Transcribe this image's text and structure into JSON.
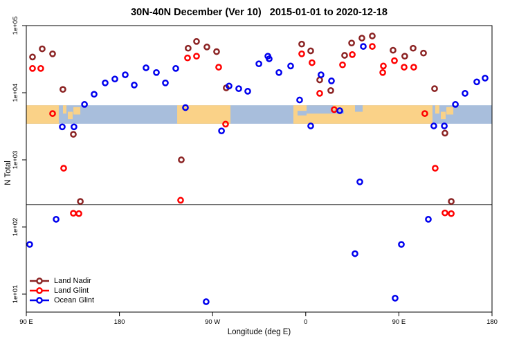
{
  "chart_data": {
    "type": "scatter",
    "title": "30N-40N December (Ver 10)   2015-01-01 to 2020-12-18",
    "xlabel": "Longitude (deg E)",
    "ylabel": "N Total",
    "x_axis": {
      "unit": "degrees east of 90E, wrapping 450 deg total",
      "range": [
        0,
        450
      ],
      "ticks": [
        {
          "pos": 0,
          "label": "90 E"
        },
        {
          "pos": 90,
          "label": "180"
        },
        {
          "pos": 180,
          "label": "90 W"
        },
        {
          "pos": 270,
          "label": "0"
        },
        {
          "pos": 360,
          "label": "90 E"
        },
        {
          "pos": 450,
          "label": "180"
        }
      ],
      "grid": false
    },
    "y_axis": {
      "scale": "log",
      "top_value": 100000,
      "bottom_value": 5.4,
      "ticks": [
        {
          "value": 100000,
          "label": "1e+05"
        },
        {
          "value": 10000,
          "label": "1e+04"
        },
        {
          "value": 1000,
          "label": "1e+03"
        },
        {
          "value": 100,
          "label": "1e+02"
        },
        {
          "value": 10,
          "label": "1e+01"
        }
      ],
      "grid": false
    },
    "reference_line_N": 215,
    "map_strip": {
      "description": "world land/ocean strip for 30N-40N drawn across plot",
      "N_top": 6500,
      "N_bottom": 3450,
      "ocean_color": "#A8BEDC",
      "land_color": "#FAD288",
      "segments": [
        {
          "type": "land",
          "d0": 0,
          "d1": 31.4,
          "f0": 0,
          "f1": 1,
          "name": "east-asia-left"
        },
        {
          "type": "land",
          "d0": 35.4,
          "d1": 38.8,
          "f0": 0,
          "f1": 0.45,
          "name": "korea-left"
        },
        {
          "type": "land",
          "d0": 40.1,
          "d1": 44.8,
          "f0": 0.35,
          "f1": 0.75,
          "name": "kyushu-left"
        },
        {
          "type": "land",
          "d0": 45.5,
          "d1": 52.2,
          "f0": 0.1,
          "f1": 0.5,
          "name": "honshu-left"
        },
        {
          "type": "land",
          "d0": 145.8,
          "d1": 197.3,
          "f0": 0,
          "f1": 1,
          "name": "north-america"
        },
        {
          "type": "land",
          "d0": 258.1,
          "d1": 392.5,
          "f0": 0,
          "f1": 1,
          "name": "africa-eurasia"
        },
        {
          "type": "ocean",
          "d0": 262.1,
          "d1": 270.8,
          "f0": 0.3,
          "f1": 0.55,
          "name": "west-mediterranean"
        },
        {
          "type": "ocean",
          "d0": 270.8,
          "d1": 306.9,
          "f0": 0,
          "f1": 0.45,
          "name": "mediterranean"
        },
        {
          "type": "ocean",
          "d0": 317.6,
          "d1": 325.0,
          "f0": 0,
          "f1": 0.35,
          "name": "caspian"
        },
        {
          "type": "land2",
          "d0": 296.2,
          "d1": 306.9,
          "f0": 0,
          "f1": 0.28,
          "name": "turkey"
        },
        {
          "type": "land",
          "d0": 395.1,
          "d1": 399.1,
          "f0": 0,
          "f1": 0.45,
          "name": "korea-right"
        },
        {
          "type": "land",
          "d0": 400.5,
          "d1": 405.2,
          "f0": 0.35,
          "f1": 0.75,
          "name": "kyushu-right"
        },
        {
          "type": "land",
          "d0": 405.9,
          "d1": 412.6,
          "f0": 0.1,
          "f1": 0.5,
          "name": "honshu-right"
        }
      ]
    },
    "legend_position": "bottom-left",
    "series": [
      {
        "name": "Land Nadir",
        "color": "#8B2323",
        "points": [
          [
            6.0,
            34000
          ],
          [
            15.4,
            45000
          ],
          [
            25.4,
            38000
          ],
          [
            35.4,
            11200
          ],
          [
            45.5,
            2400
          ],
          [
            52.2,
            240
          ],
          [
            149.8,
            1000
          ],
          [
            156.4,
            46000
          ],
          [
            164.5,
            58000
          ],
          [
            174.5,
            48000
          ],
          [
            183.9,
            41000
          ],
          [
            193.2,
            11800
          ],
          [
            266.1,
            53000
          ],
          [
            274.8,
            42000
          ],
          [
            283.5,
            15500
          ],
          [
            294.2,
            10800
          ],
          [
            307.6,
            36000
          ],
          [
            314.3,
            55000
          ],
          [
            324.3,
            65000
          ],
          [
            334.3,
            70000
          ],
          [
            354.4,
            43000
          ],
          [
            365.7,
            35000
          ],
          [
            373.8,
            46000
          ],
          [
            383.8,
            39000
          ],
          [
            394.5,
            11500
          ],
          [
            404.5,
            2500
          ],
          [
            410.6,
            240
          ]
        ]
      },
      {
        "name": "Land Glint",
        "color": "#FF0000",
        "points": [
          [
            6.0,
            23000
          ],
          [
            14.0,
            23000
          ],
          [
            25.4,
            4900
          ],
          [
            36.1,
            750
          ],
          [
            45.5,
            160
          ],
          [
            50.8,
            158
          ],
          [
            149.1,
            250
          ],
          [
            155.8,
            33000
          ],
          [
            164.5,
            35000
          ],
          [
            185.9,
            24000
          ],
          [
            192.6,
            3400
          ],
          [
            266.1,
            38000
          ],
          [
            276.1,
            28000
          ],
          [
            283.5,
            9800
          ],
          [
            297.5,
            5600
          ],
          [
            305.6,
            26000
          ],
          [
            315.0,
            37000
          ],
          [
            334.3,
            49000
          ],
          [
            344.4,
            20000
          ],
          [
            345.0,
            25000
          ],
          [
            355.7,
            30000
          ],
          [
            365.1,
            24000
          ],
          [
            374.4,
            24000
          ],
          [
            385.1,
            4900
          ],
          [
            395.1,
            750
          ],
          [
            404.5,
            162
          ],
          [
            410.6,
            158
          ]
        ]
      },
      {
        "name": "Ocean Glint",
        "color": "#0000EE",
        "points": [
          [
            3.3,
            55
          ],
          [
            28.8,
            130
          ],
          [
            34.8,
            3100
          ],
          [
            46.1,
            3100
          ],
          [
            56.2,
            6700
          ],
          [
            65.5,
            9500
          ],
          [
            76.2,
            14000
          ],
          [
            85.6,
            16000
          ],
          [
            95.6,
            18500
          ],
          [
            104.3,
            13000
          ],
          [
            115.7,
            23500
          ],
          [
            125.7,
            20000
          ],
          [
            134.4,
            14000
          ],
          [
            144.4,
            23000
          ],
          [
            153.8,
            6000
          ],
          [
            173.8,
            7.7
          ],
          [
            188.6,
            2700
          ],
          [
            195.9,
            12600
          ],
          [
            205.3,
            11500
          ],
          [
            214.0,
            10500
          ],
          [
            224.7,
            27000
          ],
          [
            233.4,
            35000
          ],
          [
            234.7,
            32000
          ],
          [
            244.1,
            20000
          ],
          [
            255.4,
            25000
          ],
          [
            264.1,
            7800
          ],
          [
            274.8,
            3200
          ],
          [
            284.8,
            18500
          ],
          [
            294.9,
            15000
          ],
          [
            302.9,
            5400
          ],
          [
            317.6,
            40
          ],
          [
            322.3,
            470
          ],
          [
            325.6,
            49000
          ],
          [
            356.4,
            8.7
          ],
          [
            362.4,
            55
          ],
          [
            388.5,
            130
          ],
          [
            393.8,
            3200
          ],
          [
            403.9,
            3200
          ],
          [
            414.6,
            6700
          ],
          [
            423.9,
            9800
          ],
          [
            435.3,
            14500
          ],
          [
            443.3,
            16500
          ]
        ]
      }
    ],
    "style": {
      "axis_color": "#000000",
      "reference_line_color": "#444444",
      "marker": "open-circle",
      "marker_radius": 3.6,
      "marker_stroke_width": 2.5
    }
  }
}
